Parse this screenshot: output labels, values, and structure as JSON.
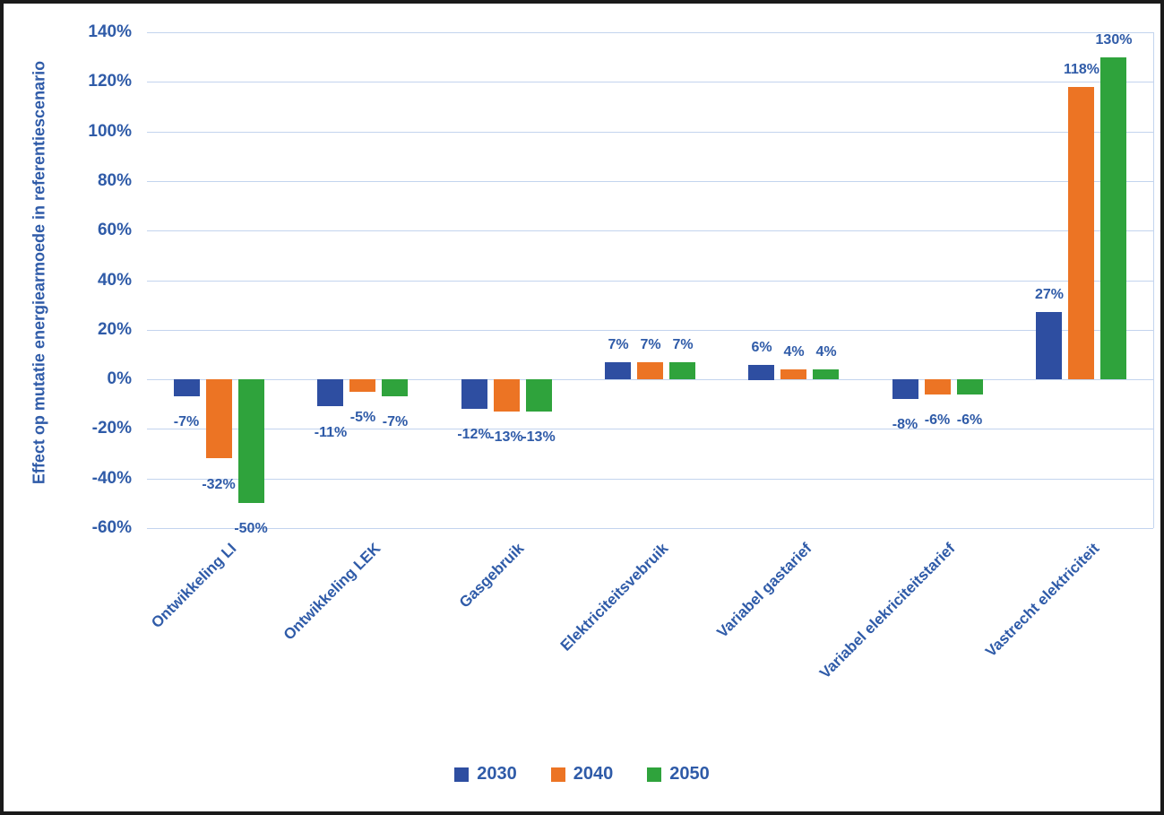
{
  "colors": {
    "text_blue": "#2F5BA8",
    "gridline": "#C3D4EE",
    "frame": "#1A1A1A",
    "background": "#FFFFFF"
  },
  "chart_data": {
    "type": "bar",
    "title": "",
    "xlabel": "",
    "ylabel": "Effect op mutatie energiearmoede in referentiescenario",
    "ylim": [
      -60,
      140
    ],
    "ytick_step": 20,
    "yticks": [
      "140%",
      "120%",
      "100%",
      "80%",
      "60%",
      "40%",
      "20%",
      "0%",
      "-20%",
      "-40%",
      "-60%"
    ],
    "grid": true,
    "legend_position": "bottom",
    "categories": [
      "Ontwikkeling LI",
      "Ontwikkeling LEK",
      "Gasgebruik",
      "Elektriciteitsvebruik",
      "Variabel gastarief",
      "Variabel elekriciteitstarief",
      "Vastrecht elektriciteit"
    ],
    "series": [
      {
        "name": "2030",
        "color": "#2E4EA1",
        "values": [
          -7,
          -11,
          -12,
          7,
          6,
          -8,
          27
        ],
        "labels": [
          "-7%",
          "-11%",
          "-12%",
          "7%",
          "6%",
          "-8%",
          "27%"
        ]
      },
      {
        "name": "2040",
        "color": "#EC7424",
        "values": [
          -32,
          -5,
          -13,
          7,
          4,
          -6,
          118
        ],
        "labels": [
          "-32%",
          "-5%",
          "-13%",
          "7%",
          "4%",
          "-6%",
          "118%"
        ]
      },
      {
        "name": "2050",
        "color": "#2FA33C",
        "values": [
          -50,
          -7,
          -13,
          7,
          4,
          -6,
          130
        ],
        "labels": [
          "-50%",
          "-7%",
          "-13%",
          "7%",
          "4%",
          "-6%",
          "130%"
        ]
      }
    ]
  }
}
